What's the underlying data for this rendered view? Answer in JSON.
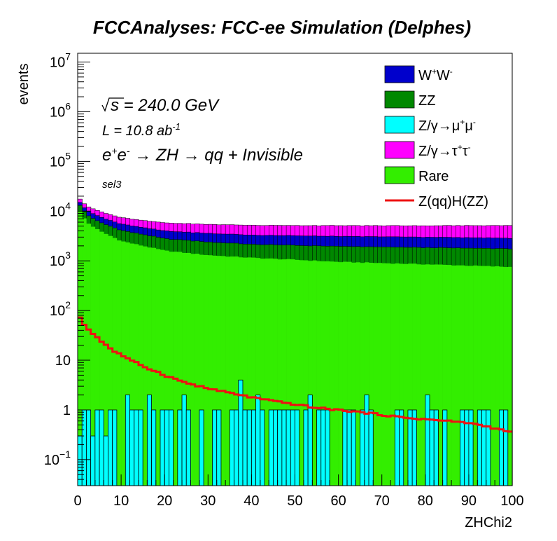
{
  "chart_data": {
    "type": "histogram-stacked",
    "title": "FCCAnalyses: FCC-ee Simulation (Delphes)",
    "xlabel": "ZHChi2",
    "ylabel": "events",
    "xlim": [
      0,
      100
    ],
    "ylim": [
      0.03,
      15000000
    ],
    "yscale": "log",
    "x_ticks": [
      "0",
      "10",
      "20",
      "30",
      "40",
      "50",
      "60",
      "70",
      "80",
      "90",
      "100"
    ],
    "y_ticks": [
      {
        "value": 0.1,
        "base": "10",
        "exp": "−1"
      },
      {
        "value": 1,
        "base": "1",
        "exp": ""
      },
      {
        "value": 10,
        "base": "10",
        "exp": ""
      },
      {
        "value": 100,
        "base": "10",
        "exp": "2"
      },
      {
        "value": 1000,
        "base": "10",
        "exp": "3"
      },
      {
        "value": 10000,
        "base": "10",
        "exp": "4"
      },
      {
        "value": 100000,
        "base": "10",
        "exp": "5"
      },
      {
        "value": 1000000,
        "base": "10",
        "exp": "6"
      },
      {
        "value": 10000000,
        "base": "10",
        "exp": "7"
      }
    ],
    "annotations": {
      "sqrt_s": "s = 240.0 GeV",
      "lumi": "L = 10.8 ab",
      "lumi_exp": "-1",
      "process": "e",
      "process_rest": " → ZH → qq + Invisible",
      "selection": "sel3"
    },
    "legend_placement": "top-right",
    "legend": [
      {
        "label": "W",
        "sup1": "+",
        "mid": "W",
        "sup2": "-",
        "color": "#0000cc",
        "kind": "fill"
      },
      {
        "label": "ZZ",
        "color": "#008800",
        "kind": "fill"
      },
      {
        "label": "Z/γ→μ",
        "sup1": "+",
        "mid": "μ",
        "sup2": "-",
        "color": "#00ffff",
        "kind": "fill"
      },
      {
        "label": "Z/γ→τ",
        "sup1": "+",
        "mid": "τ",
        "sup2": "-",
        "color": "#ff00ff",
        "kind": "fill"
      },
      {
        "label": "Rare",
        "color": "#33ee00",
        "kind": "fill"
      },
      {
        "label": "Z(qq)H(ZZ)",
        "color": "#ee1111",
        "kind": "line"
      }
    ],
    "bins": 100,
    "series": [
      {
        "name": "Rare",
        "color": "#33ee00",
        "anchors": [
          [
            0,
            12000
          ],
          [
            2,
            6000
          ],
          [
            5,
            4000
          ],
          [
            10,
            2500
          ],
          [
            20,
            1600
          ],
          [
            30,
            1300
          ],
          [
            40,
            1150
          ],
          [
            50,
            1050
          ],
          [
            60,
            950
          ],
          [
            70,
            900
          ],
          [
            80,
            850
          ],
          [
            90,
            800
          ],
          [
            100,
            750
          ]
        ]
      },
      {
        "name": "ZZ",
        "color": "#008800",
        "anchors": [
          [
            0,
            3000
          ],
          [
            5,
            2000
          ],
          [
            10,
            1600
          ],
          [
            20,
            1200
          ],
          [
            30,
            1100
          ],
          [
            40,
            1000
          ],
          [
            60,
            1000
          ],
          [
            80,
            1000
          ],
          [
            100,
            1000
          ]
        ]
      },
      {
        "name": "W+W-",
        "color": "#0000cc",
        "anchors": [
          [
            0,
            2000
          ],
          [
            10,
            1400
          ],
          [
            20,
            1200
          ],
          [
            40,
            1150
          ],
          [
            60,
            1150
          ],
          [
            80,
            1150
          ],
          [
            100,
            1100
          ]
        ]
      },
      {
        "name": "Z/γ→τ+τ-",
        "color": "#ff00ff",
        "anchors": [
          [
            0,
            2500
          ],
          [
            10,
            1900
          ],
          [
            20,
            1800
          ],
          [
            40,
            1900
          ],
          [
            60,
            2000
          ],
          [
            80,
            2100
          ],
          [
            100,
            2300
          ]
        ]
      }
    ],
    "mumu_bins": [
      {
        "x": 0,
        "y": 0.3
      },
      {
        "x": 1,
        "y": 1
      },
      {
        "x": 2,
        "y": 1
      },
      {
        "x": 3,
        "y": 0.3
      },
      {
        "x": 4,
        "y": 1
      },
      {
        "x": 5,
        "y": 1
      },
      {
        "x": 6,
        "y": 0.3
      },
      {
        "x": 7,
        "y": 1
      },
      {
        "x": 8,
        "y": 1
      },
      {
        "x": 11,
        "y": 2
      },
      {
        "x": 12,
        "y": 1
      },
      {
        "x": 13,
        "y": 1
      },
      {
        "x": 14,
        "y": 1
      },
      {
        "x": 16,
        "y": 2
      },
      {
        "x": 17,
        "y": 1
      },
      {
        "x": 19,
        "y": 1
      },
      {
        "x": 20,
        "y": 1
      },
      {
        "x": 21,
        "y": 1
      },
      {
        "x": 23,
        "y": 1
      },
      {
        "x": 24,
        "y": 2
      },
      {
        "x": 25,
        "y": 1
      },
      {
        "x": 28,
        "y": 1
      },
      {
        "x": 31,
        "y": 1
      },
      {
        "x": 32,
        "y": 1
      },
      {
        "x": 35,
        "y": 1
      },
      {
        "x": 36,
        "y": 1
      },
      {
        "x": 37,
        "y": 4
      },
      {
        "x": 38,
        "y": 1
      },
      {
        "x": 39,
        "y": 1
      },
      {
        "x": 40,
        "y": 1
      },
      {
        "x": 41,
        "y": 2
      },
      {
        "x": 42,
        "y": 1
      },
      {
        "x": 44,
        "y": 1
      },
      {
        "x": 45,
        "y": 1
      },
      {
        "x": 46,
        "y": 1
      },
      {
        "x": 47,
        "y": 1
      },
      {
        "x": 48,
        "y": 1
      },
      {
        "x": 49,
        "y": 1
      },
      {
        "x": 50,
        "y": 1
      },
      {
        "x": 52,
        "y": 1
      },
      {
        "x": 53,
        "y": 2
      },
      {
        "x": 55,
        "y": 1
      },
      {
        "x": 56,
        "y": 1
      },
      {
        "x": 57,
        "y": 1
      },
      {
        "x": 61,
        "y": 1
      },
      {
        "x": 62,
        "y": 1
      },
      {
        "x": 63,
        "y": 1
      },
      {
        "x": 65,
        "y": 1
      },
      {
        "x": 66,
        "y": 2
      },
      {
        "x": 67,
        "y": 1
      },
      {
        "x": 73,
        "y": 1
      },
      {
        "x": 74,
        "y": 1
      },
      {
        "x": 76,
        "y": 1
      },
      {
        "x": 77,
        "y": 1
      },
      {
        "x": 80,
        "y": 2
      },
      {
        "x": 81,
        "y": 1
      },
      {
        "x": 82,
        "y": 1
      },
      {
        "x": 84,
        "y": 1
      },
      {
        "x": 88,
        "y": 1
      },
      {
        "x": 89,
        "y": 1
      },
      {
        "x": 90,
        "y": 1
      },
      {
        "x": 92,
        "y": 1
      },
      {
        "x": 93,
        "y": 1
      },
      {
        "x": 94,
        "y": 1
      },
      {
        "x": 97,
        "y": 1
      },
      {
        "x": 98,
        "y": 1
      }
    ],
    "signal": {
      "name": "Z(qq)H(ZZ)",
      "color": "#ee1111",
      "anchors": [
        [
          0,
          90
        ],
        [
          1,
          60
        ],
        [
          2,
          45
        ],
        [
          3,
          38
        ],
        [
          4,
          32
        ],
        [
          5,
          26
        ],
        [
          6,
          22
        ],
        [
          7,
          19
        ],
        [
          8,
          16
        ],
        [
          9,
          14
        ],
        [
          10,
          13
        ],
        [
          12,
          10
        ],
        [
          14,
          8.5
        ],
        [
          16,
          7
        ],
        [
          18,
          6
        ],
        [
          20,
          5
        ],
        [
          25,
          3.5
        ],
        [
          30,
          2.7
        ],
        [
          35,
          2.2
        ],
        [
          40,
          1.8
        ],
        [
          45,
          1.5
        ],
        [
          50,
          1.3
        ],
        [
          55,
          1.1
        ],
        [
          60,
          1.0
        ],
        [
          65,
          0.9
        ],
        [
          70,
          0.8
        ],
        [
          75,
          0.7
        ],
        [
          80,
          0.65
        ],
        [
          85,
          0.6
        ],
        [
          90,
          0.55
        ],
        [
          95,
          0.45
        ],
        [
          100,
          0.35
        ]
      ]
    }
  }
}
